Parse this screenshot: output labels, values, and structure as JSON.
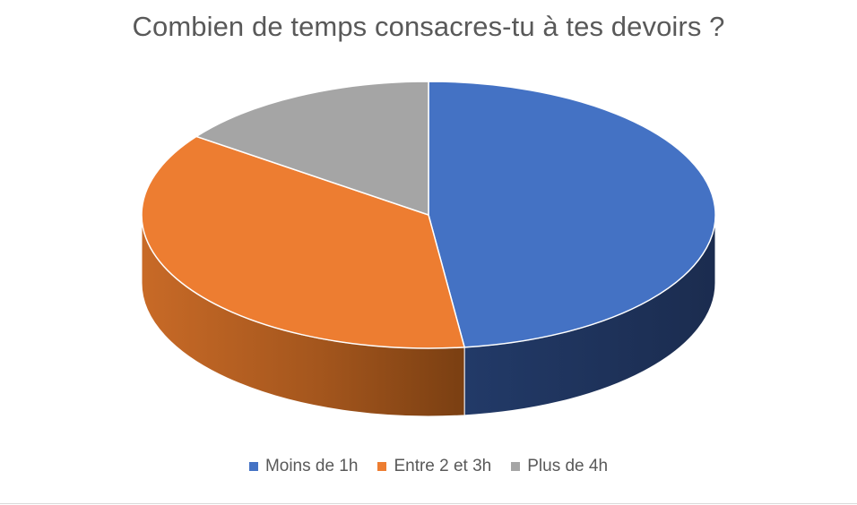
{
  "chart_data": {
    "type": "pie",
    "title": "Combien de temps consacres-tu à tes devoirs ?",
    "categories": [
      "Moins de 1h",
      "Entre 2 et 3h",
      "Plus de 4h"
    ],
    "values": [
      48,
      37,
      15
    ],
    "colors": [
      "#4472C4",
      "#ED7D31",
      "#A5A5A5"
    ],
    "legend_position": "bottom",
    "style": "3d"
  }
}
